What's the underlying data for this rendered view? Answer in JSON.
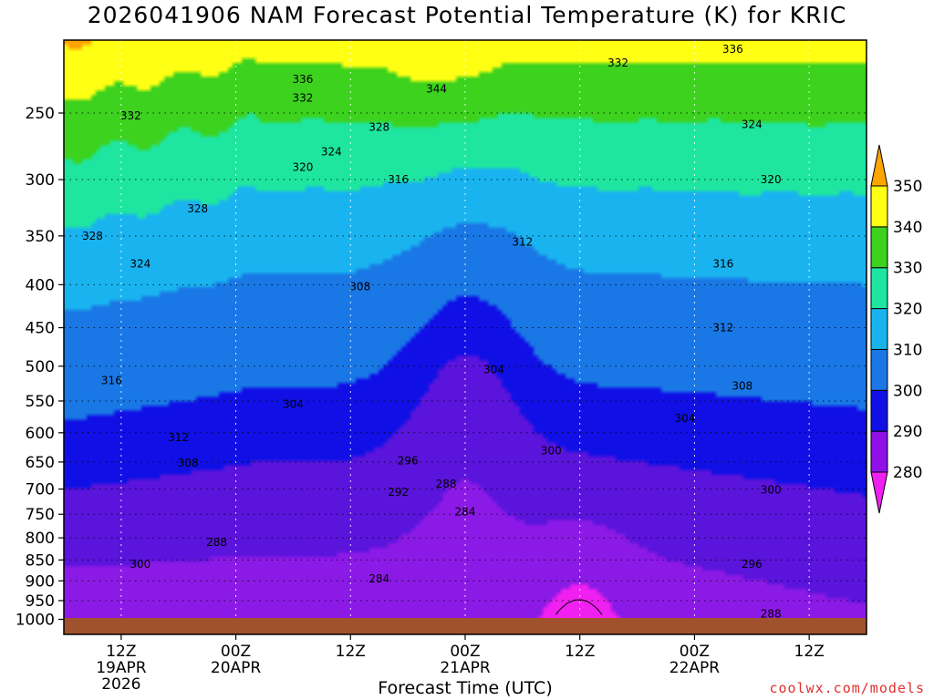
{
  "title": "2026041906 NAM Forecast Potential Temperature (K) for KRIC",
  "credit": "coolwx.com/models",
  "chart_data": {
    "type": "heatmap",
    "title": "2026041906 NAM Forecast Potential Temperature (K) for KRIC",
    "xlabel": "Forecast Time (UTC)",
    "ylabel": "",
    "x_range_hours": [
      0,
      84
    ],
    "y_axis": {
      "scale": "log",
      "reversed": true,
      "range_hPa": [
        1025,
        200
      ],
      "ticks": [
        250,
        300,
        350,
        400,
        450,
        500,
        550,
        600,
        650,
        700,
        750,
        800,
        850,
        900,
        950,
        1000
      ]
    },
    "x_ticks": [
      {
        "hour": 6,
        "lines": [
          "12Z",
          "19APR",
          "2026"
        ]
      },
      {
        "hour": 18,
        "lines": [
          "00Z",
          "20APR"
        ]
      },
      {
        "hour": 30,
        "lines": [
          "12Z"
        ]
      },
      {
        "hour": 42,
        "lines": [
          "00Z",
          "21APR"
        ]
      },
      {
        "hour": 54,
        "lines": [
          "12Z"
        ]
      },
      {
        "hour": 66,
        "lines": [
          "00Z",
          "22APR"
        ]
      },
      {
        "hour": 78,
        "lines": [
          "12Z"
        ]
      }
    ],
    "grid": true,
    "colorbar": {
      "levels": [
        280,
        290,
        300,
        310,
        320,
        330,
        340,
        350
      ],
      "colors": [
        "#f020f0",
        "#8c1ae6",
        "#5a14dc",
        "#1010e6",
        "#1978e6",
        "#19b4f0",
        "#1ee6a0",
        "#3cd21e",
        "#ffff14",
        "#ffa500"
      ]
    },
    "contour_interval": 4,
    "contour_labels": [
      {
        "value": 336,
        "hour": 25,
        "p": 228
      },
      {
        "value": 344,
        "hour": 39,
        "p": 234
      },
      {
        "value": 332,
        "hour": 58,
        "p": 218
      },
      {
        "value": 336,
        "hour": 70,
        "p": 210
      },
      {
        "value": 332,
        "hour": 7,
        "p": 252
      },
      {
        "value": 332,
        "hour": 25,
        "p": 240
      },
      {
        "value": 328,
        "hour": 33,
        "p": 260
      },
      {
        "value": 324,
        "hour": 72,
        "p": 258
      },
      {
        "value": 324,
        "hour": 28,
        "p": 278
      },
      {
        "value": 320,
        "hour": 25,
        "p": 290
      },
      {
        "value": 316,
        "hour": 35,
        "p": 300
      },
      {
        "value": 320,
        "hour": 74,
        "p": 300
      },
      {
        "value": 328,
        "hour": 14,
        "p": 325
      },
      {
        "value": 328,
        "hour": 3,
        "p": 350
      },
      {
        "value": 324,
        "hour": 8,
        "p": 378
      },
      {
        "value": 312,
        "hour": 48,
        "p": 356
      },
      {
        "value": 316,
        "hour": 69,
        "p": 378
      },
      {
        "value": 308,
        "hour": 31,
        "p": 402
      },
      {
        "value": 312,
        "hour": 69,
        "p": 450
      },
      {
        "value": 316,
        "hour": 5,
        "p": 520
      },
      {
        "value": 304,
        "hour": 24,
        "p": 555
      },
      {
        "value": 304,
        "hour": 45,
        "p": 505
      },
      {
        "value": 308,
        "hour": 71,
        "p": 528
      },
      {
        "value": 304,
        "hour": 65,
        "p": 577
      },
      {
        "value": 312,
        "hour": 12,
        "p": 608
      },
      {
        "value": 308,
        "hour": 13,
        "p": 652
      },
      {
        "value": 296,
        "hour": 36,
        "p": 648
      },
      {
        "value": 300,
        "hour": 51,
        "p": 630
      },
      {
        "value": 292,
        "hour": 35,
        "p": 706
      },
      {
        "value": 288,
        "hour": 40,
        "p": 690
      },
      {
        "value": 300,
        "hour": 74,
        "p": 702
      },
      {
        "value": 284,
        "hour": 42,
        "p": 745
      },
      {
        "value": 288,
        "hour": 16,
        "p": 810
      },
      {
        "value": 300,
        "hour": 8,
        "p": 860
      },
      {
        "value": 296,
        "hour": 72,
        "p": 860
      },
      {
        "value": 284,
        "hour": 33,
        "p": 895
      },
      {
        "value": 288,
        "hour": 74,
        "p": 985
      }
    ]
  }
}
